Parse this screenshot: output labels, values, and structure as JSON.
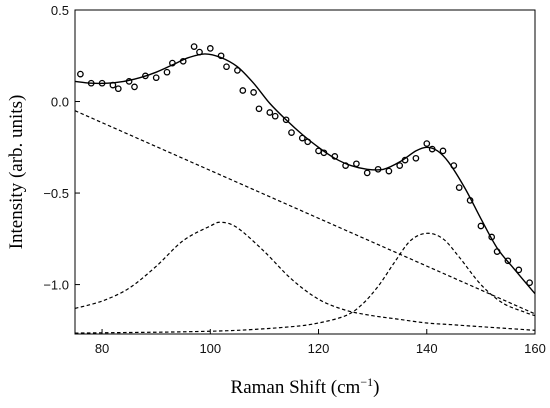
{
  "chart_data": {
    "type": "scatter",
    "xlabel": "Raman Shift (cm",
    "xlabel_sup": "−1",
    "xlabel_close": ")",
    "ylabel": "Intensity (arb. units)",
    "xlim": [
      75,
      160
    ],
    "ylim": [
      -1.27,
      0.5
    ],
    "x_ticks": [
      80,
      100,
      120,
      140,
      160
    ],
    "x_tick_labels": [
      "80",
      "100",
      "120",
      "140",
      "160"
    ],
    "y_ticks": [
      0.5,
      0.0,
      -0.5,
      -1.0
    ],
    "y_tick_labels": [
      "0.5",
      "0.0",
      "−0.5",
      "−1.0"
    ],
    "grid": false,
    "legend": "none",
    "series": [
      {
        "style": "open-circle markers",
        "x": [
          76,
          78,
          80,
          82,
          83,
          85,
          86,
          88,
          90,
          92,
          93,
          95,
          97,
          98,
          100,
          102,
          103,
          105,
          106,
          108,
          109,
          111,
          112,
          114,
          115,
          117,
          118,
          120,
          121,
          123,
          125,
          127,
          129,
          131,
          133,
          135,
          136,
          138,
          140,
          141,
          143,
          145,
          146,
          148,
          150,
          152,
          153,
          155,
          157,
          159
        ],
        "y": [
          0.15,
          0.1,
          0.1,
          0.09,
          0.07,
          0.11,
          0.08,
          0.14,
          0.13,
          0.16,
          0.21,
          0.22,
          0.3,
          0.27,
          0.29,
          0.25,
          0.19,
          0.17,
          0.06,
          0.05,
          -0.04,
          -0.06,
          -0.08,
          -0.1,
          -0.17,
          -0.2,
          -0.22,
          -0.27,
          -0.28,
          -0.3,
          -0.35,
          -0.34,
          -0.39,
          -0.37,
          -0.38,
          -0.35,
          -0.32,
          -0.31,
          -0.23,
          -0.26,
          -0.27,
          -0.35,
          -0.47,
          -0.54,
          -0.68,
          -0.74,
          -0.82,
          -0.87,
          -0.92,
          -0.99
        ]
      },
      {
        "style": "solid line",
        "x": [
          75,
          78,
          81,
          84,
          87,
          90,
          93,
          96,
          99,
          102,
          105,
          108,
          111,
          114,
          117,
          120,
          123,
          126,
          129,
          132,
          135,
          138,
          140,
          142,
          144,
          147,
          150,
          153,
          156,
          160
        ],
        "y": [
          0.11,
          0.1,
          0.1,
          0.11,
          0.13,
          0.16,
          0.2,
          0.24,
          0.26,
          0.24,
          0.19,
          0.1,
          -0.01,
          -0.1,
          -0.18,
          -0.25,
          -0.31,
          -0.35,
          -0.37,
          -0.37,
          -0.33,
          -0.27,
          -0.25,
          -0.27,
          -0.33,
          -0.47,
          -0.64,
          -0.8,
          -0.91,
          -1.05
        ]
      },
      {
        "style": "dashed line",
        "x": [
          75,
          160
        ],
        "y": [
          -0.05,
          -1.16
        ]
      },
      {
        "style": "dashed line",
        "x": [
          75,
          80,
          85,
          90,
          95,
          100,
          102,
          105,
          110,
          115,
          120,
          125,
          130,
          135,
          140,
          145,
          150,
          155,
          160
        ],
        "y": [
          -1.13,
          -1.09,
          -1.02,
          -0.9,
          -0.76,
          -0.68,
          -0.66,
          -0.69,
          -0.82,
          -0.97,
          -1.08,
          -1.14,
          -1.17,
          -1.19,
          -1.21,
          -1.22,
          -1.23,
          -1.24,
          -1.25
        ]
      },
      {
        "style": "dashed line",
        "x": [
          75,
          85,
          95,
          105,
          115,
          120,
          125,
          128,
          131,
          134,
          137,
          140,
          143,
          146,
          150,
          154,
          158,
          160
        ],
        "y": [
          -1.265,
          -1.262,
          -1.258,
          -1.25,
          -1.23,
          -1.21,
          -1.17,
          -1.11,
          -1.01,
          -0.88,
          -0.76,
          -0.72,
          -0.75,
          -0.85,
          -1.0,
          -1.1,
          -1.15,
          -1.17
        ]
      }
    ]
  }
}
